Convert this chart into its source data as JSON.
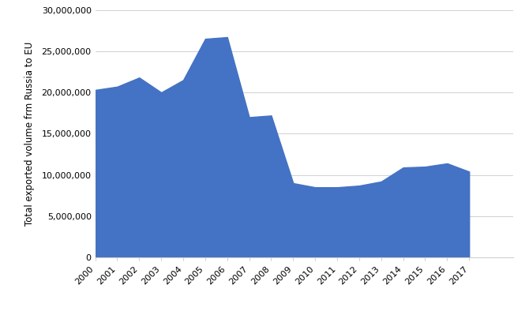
{
  "years": [
    2000,
    2001,
    2002,
    2003,
    2004,
    2005,
    2006,
    2007,
    2008,
    2009,
    2010,
    2011,
    2012,
    2013,
    2014,
    2015,
    2016,
    2017
  ],
  "values": [
    20300000,
    20700000,
    21800000,
    20000000,
    21500000,
    26500000,
    26700000,
    17000000,
    17200000,
    9000000,
    8500000,
    8500000,
    8700000,
    9200000,
    10900000,
    11000000,
    11400000,
    10400000
  ],
  "fill_color": "#4472C4",
  "line_color": "#4472C4",
  "background_color": "#ffffff",
  "ylabel": "Total exported volume frm Russia to EU",
  "ylim": [
    0,
    30000000
  ],
  "yticks": [
    0,
    5000000,
    10000000,
    15000000,
    20000000,
    25000000,
    30000000
  ],
  "grid_color": "#d0d0d0",
  "tick_label_fontsize": 8,
  "ylabel_fontsize": 8.5,
  "xlim_min": 2000,
  "xlim_max": 2019
}
